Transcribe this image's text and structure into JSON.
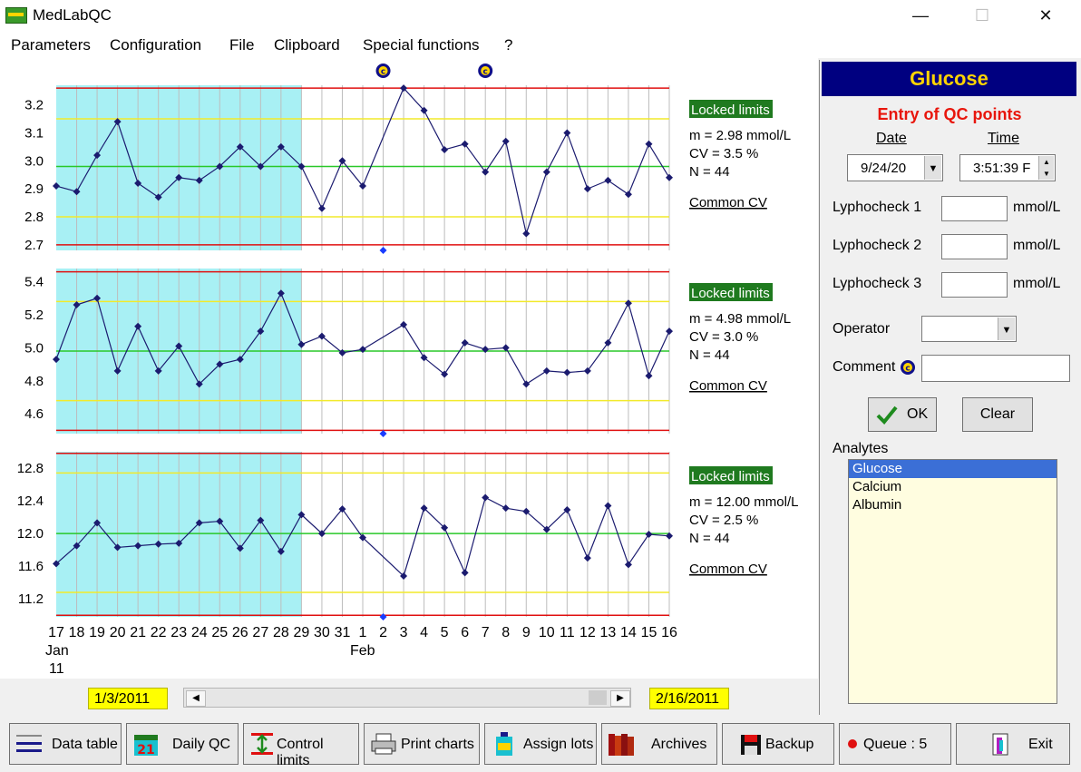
{
  "app": {
    "title": "MedLabQC",
    "minimize": "—",
    "maximize": "☐",
    "close": "✕"
  },
  "menu": [
    "Parameters",
    "Configuration",
    "File",
    "Clipboard",
    "Special functions",
    "?"
  ],
  "colors": {
    "ref_fill": "#a8f0f4",
    "limit": "#e01010",
    "sd2": "#f2ea2a",
    "mean": "#29c829",
    "line": "#1b1b6f",
    "grid": "#bdbdbd",
    "badge": "#1f7a1f",
    "header": "#000080",
    "header_text": "#ffd400",
    "entry_title": "#e8160c"
  },
  "chart_data": {
    "type": "line",
    "x_labels": [
      "17",
      "18",
      "19",
      "20",
      "21",
      "22",
      "23",
      "24",
      "25",
      "26",
      "27",
      "28",
      "29",
      "30",
      "31",
      "1",
      "2",
      "3",
      "4",
      "5",
      "6",
      "7",
      "8",
      "9",
      "10",
      "11",
      "12",
      "13",
      "14",
      "15",
      "16"
    ],
    "month_labels": [
      {
        "index": 0,
        "text": "Jan"
      },
      {
        "index": 0,
        "text2": "11"
      },
      {
        "index": 15,
        "text": "Feb"
      }
    ],
    "reference_period_end_index": 11,
    "comment_marker_indices": [
      16,
      21
    ],
    "panels": [
      {
        "ticks": [
          3.2,
          3.1,
          3.0,
          2.9,
          2.8,
          2.7
        ],
        "ylim": [
          2.68,
          3.27
        ],
        "limit_lines": [
          2.7,
          3.26
        ],
        "sd2_lines": [
          2.8,
          3.15
        ],
        "mean_line": 2.98,
        "points": [
          [
            0,
            2.91
          ],
          [
            1,
            2.89
          ],
          [
            2,
            3.02
          ],
          [
            3,
            3.14
          ],
          [
            4,
            2.92
          ],
          [
            5,
            2.87
          ],
          [
            6,
            2.94
          ],
          [
            7,
            2.93
          ],
          [
            8,
            2.98
          ],
          [
            9,
            3.05
          ],
          [
            10,
            2.98
          ],
          [
            11,
            3.05
          ],
          [
            12,
            2.98
          ],
          [
            13,
            2.83
          ],
          [
            14,
            3.0
          ],
          [
            15,
            2.91
          ],
          [
            17,
            3.26
          ],
          [
            18,
            3.18
          ],
          [
            19,
            3.04
          ],
          [
            20,
            3.06
          ],
          [
            21,
            2.96
          ],
          [
            22,
            3.07
          ],
          [
            23,
            2.74
          ],
          [
            24,
            2.96
          ],
          [
            25,
            3.1
          ],
          [
            26,
            2.9
          ],
          [
            27,
            2.93
          ],
          [
            28,
            2.88
          ],
          [
            29,
            3.06
          ],
          [
            30,
            2.94
          ]
        ],
        "label": {
          "badge": "Locked limits",
          "m": "m = 2.98 mmol/L",
          "cv": "CV = 3.5 %",
          "n": "N = 44",
          "link": "Common CV"
        }
      },
      {
        "ticks": [
          5.4,
          5.2,
          5.0,
          4.8,
          4.6
        ],
        "ylim": [
          4.48,
          5.48
        ],
        "limit_lines": [
          4.5,
          5.46
        ],
        "sd2_lines": [
          4.68,
          5.28
        ],
        "mean_line": 4.98,
        "points": [
          [
            0,
            4.93
          ],
          [
            1,
            5.26
          ],
          [
            2,
            5.3
          ],
          [
            3,
            4.86
          ],
          [
            4,
            5.13
          ],
          [
            5,
            4.86
          ],
          [
            6,
            5.01
          ],
          [
            7,
            4.78
          ],
          [
            8,
            4.9
          ],
          [
            9,
            4.93
          ],
          [
            10,
            5.1
          ],
          [
            11,
            5.33
          ],
          [
            12,
            5.02
          ],
          [
            13,
            5.07
          ],
          [
            14,
            4.97
          ],
          [
            15,
            4.99
          ],
          [
            17,
            5.14
          ],
          [
            18,
            4.94
          ],
          [
            19,
            4.84
          ],
          [
            20,
            5.03
          ],
          [
            21,
            4.99
          ],
          [
            22,
            5.0
          ],
          [
            23,
            4.78
          ],
          [
            24,
            4.86
          ],
          [
            25,
            4.85
          ],
          [
            26,
            4.86
          ],
          [
            27,
            5.03
          ],
          [
            28,
            5.27
          ],
          [
            29,
            4.83
          ],
          [
            30,
            5.1
          ]
        ],
        "label": {
          "badge": "Locked limits",
          "m": "m = 4.98 mmol/L",
          "cv": "CV = 3.0 %",
          "n": "N = 44",
          "link": "Common CV"
        }
      },
      {
        "ticks": [
          12.8,
          12.4,
          12.0,
          11.6,
          11.2
        ],
        "ylim": [
          10.98,
          13.0
        ],
        "limit_lines": [
          11.0,
          12.98
        ],
        "sd2_lines": [
          11.28,
          12.74
        ],
        "mean_line": 12.0,
        "points": [
          [
            0,
            11.63
          ],
          [
            1,
            11.85
          ],
          [
            2,
            12.13
          ],
          [
            3,
            11.83
          ],
          [
            4,
            11.85
          ],
          [
            5,
            11.87
          ],
          [
            6,
            11.88
          ],
          [
            7,
            12.13
          ],
          [
            8,
            12.15
          ],
          [
            9,
            11.82
          ],
          [
            10,
            12.16
          ],
          [
            11,
            11.78
          ],
          [
            12,
            12.23
          ],
          [
            13,
            12.0
          ],
          [
            14,
            12.3
          ],
          [
            15,
            11.95
          ],
          [
            17,
            11.48
          ],
          [
            18,
            12.31
          ],
          [
            19,
            12.07
          ],
          [
            20,
            11.52
          ],
          [
            21,
            12.44
          ],
          [
            22,
            12.31
          ],
          [
            23,
            12.27
          ],
          [
            24,
            12.05
          ],
          [
            25,
            12.29
          ],
          [
            26,
            11.7
          ],
          [
            27,
            12.34
          ],
          [
            28,
            11.62
          ],
          [
            29,
            11.99
          ],
          [
            30,
            11.97
          ]
        ],
        "label": {
          "badge": "Locked limits",
          "m": "m = 12.00 mmol/L",
          "cv": "CV = 2.5 %",
          "n": "N = 44",
          "link": "Common CV"
        }
      }
    ]
  },
  "range": {
    "start": "1/3/2011",
    "end": "2/16/2011"
  },
  "side": {
    "analyte": "Glucose",
    "entry_title": "Entry of QC points",
    "date_label": "Date",
    "time_label": "Time",
    "date_value": "9/24/20",
    "time_value": "3:51:39 F",
    "levels": [
      {
        "name": "Lyphocheck 1",
        "unit": "mmol/L",
        "value": ""
      },
      {
        "name": "Lyphocheck 2",
        "unit": "mmol/L",
        "value": ""
      },
      {
        "name": "Lyphocheck 3",
        "unit": "mmol/L",
        "value": ""
      }
    ],
    "operator_label": "Operator",
    "operator_value": "",
    "comment_label": "Comment",
    "comment_value": "",
    "ok_label": "OK",
    "clear_label": "Clear",
    "analytes_label": "Analytes",
    "analytes": [
      "Glucose",
      "Calcium",
      "Albumin"
    ],
    "selected": "Glucose"
  },
  "toolbar": [
    {
      "label": "Data table",
      "icon": "table-icon"
    },
    {
      "label": "Daily QC",
      "icon": "calendar-icon",
      "cal": "21"
    },
    {
      "label": "Control limits",
      "icon": "limits-icon"
    },
    {
      "label": "Print charts",
      "icon": "printer-icon"
    },
    {
      "label": "Assign lots",
      "icon": "bottle-icon"
    },
    {
      "label": "Archives",
      "icon": "books-icon"
    },
    {
      "label": "Backup",
      "icon": "floppy-icon"
    },
    {
      "label": "Queue : 5",
      "icon": "queue-dot-icon"
    },
    {
      "label": "Exit",
      "icon": "exit-door-icon"
    }
  ]
}
